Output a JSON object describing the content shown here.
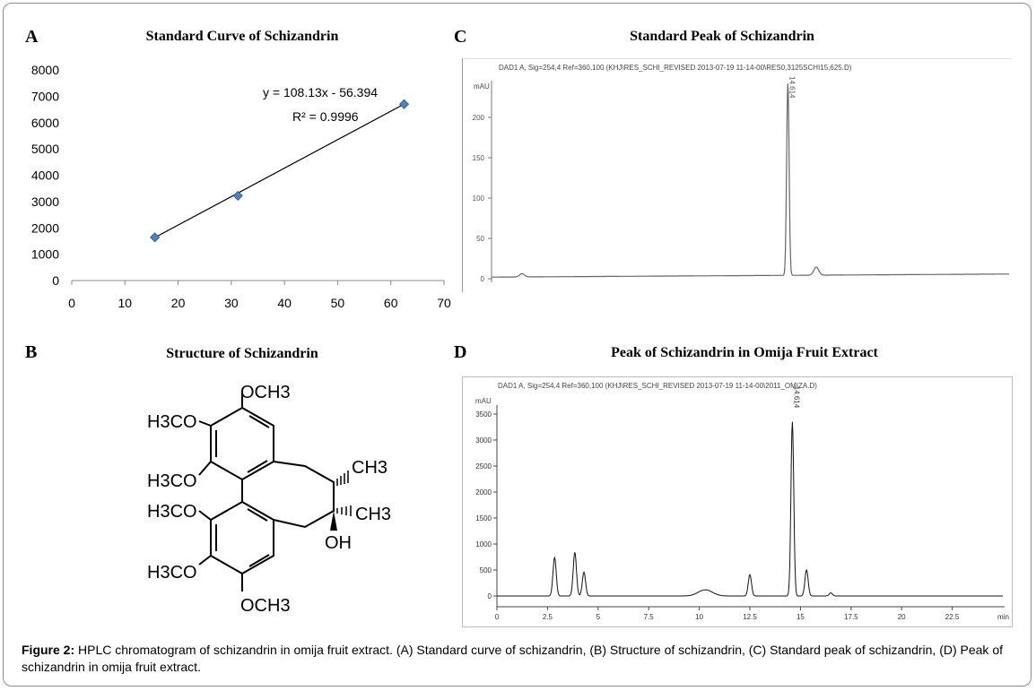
{
  "figure": {
    "caption_label": "Figure 2:",
    "caption_text": " HPLC chromatogram of schizandrin in omija fruit extract. (A) Standard curve of schizandrin, (B) Structure of schizandrin, (C) Standard peak of schizandrin, (D) Peak of schizandrin in omija fruit extract."
  },
  "panelA": {
    "letter": "A",
    "title": "Standard Curve of Schizandrin",
    "equation": "y = 108.13x  - 56.394",
    "r2": "R² = 0.9996"
  },
  "panelB": {
    "letter": "B",
    "title": "Structure of Schizandrin",
    "labels": {
      "och3_top": "OCH3",
      "h3co_1": "H3CO",
      "h3co_2": "H3CO",
      "h3co_3": "H3CO",
      "h3co_4": "H3CO",
      "och3_bottom": "OCH3",
      "ch3_1": "CH3",
      "ch3_2": "CH3",
      "oh": "OH"
    }
  },
  "panelC": {
    "letter": "C",
    "title": "Standard Peak of Schizandrin",
    "header": "DAD1 A, Sig=254,4 Ref=360,100 (KHJ\\RES_SCHI_REVISED 2013-07-19 11-14-00\\RES0,3125SCHI15,625.D)",
    "unit": "mAU",
    "peak_label": "14.614"
  },
  "panelD": {
    "letter": "D",
    "title": "Peak of Schizandrin in Omija Fruit Extract",
    "header": "DAD1 A, Sig=254,4 Ref=360,100 (KHJ\\RES_SCHI_REVISED 2013-07-19 11-14-00\\2011_OMIZA.D)",
    "unit": "mAU",
    "peak_label": "14.614",
    "x_unit": "min"
  },
  "chart_data": [
    {
      "type": "scatter",
      "title": "Standard Curve of Schizandrin",
      "x": [
        15.625,
        31.25,
        62.5
      ],
      "y": [
        1640,
        3220,
        6700
      ],
      "xlim": [
        0,
        70
      ],
      "ylim": [
        0,
        8000
      ],
      "xticks": [
        0,
        10,
        20,
        30,
        40,
        50,
        60,
        70
      ],
      "yticks": [
        0,
        1000,
        2000,
        3000,
        4000,
        5000,
        6000,
        7000,
        8000
      ],
      "trendline": {
        "slope": 108.13,
        "intercept": -56.394
      },
      "marker_color": "#4f81bd",
      "grid": false
    },
    {
      "type": "line",
      "title": "Standard Peak of Schizandrin",
      "ylim": [
        -5,
        240
      ],
      "yticks": [
        0,
        50,
        100,
        150,
        200
      ],
      "peaks": [
        {
          "x": 14.6,
          "height": 240
        },
        {
          "x": 16.0,
          "height": 10
        },
        {
          "x": 1.5,
          "height": 4
        }
      ]
    },
    {
      "type": "line",
      "title": "Peak of Schizandrin in Omija Fruit Extract",
      "xlim": [
        0,
        25
      ],
      "ylim": [
        -100,
        3800
      ],
      "xticks": [
        0,
        2.5,
        5,
        7.5,
        10,
        12.5,
        15,
        17.5,
        20,
        22.5
      ],
      "xtick_labels": [
        "0",
        "2.5",
        "5",
        "7.5",
        "10",
        "12.5",
        "15",
        "17.5",
        "20",
        "22.5"
      ],
      "yticks": [
        0,
        500,
        1000,
        1500,
        2000,
        2500,
        3000,
        3500
      ],
      "peaks": [
        {
          "x": 2.85,
          "height": 740
        },
        {
          "x": 3.85,
          "height": 840
        },
        {
          "x": 4.3,
          "height": 460
        },
        {
          "x": 10.3,
          "height": 120
        },
        {
          "x": 12.5,
          "height": 410
        },
        {
          "x": 14.6,
          "height": 3350
        },
        {
          "x": 15.3,
          "height": 500
        },
        {
          "x": 16.5,
          "height": 60
        }
      ]
    }
  ]
}
